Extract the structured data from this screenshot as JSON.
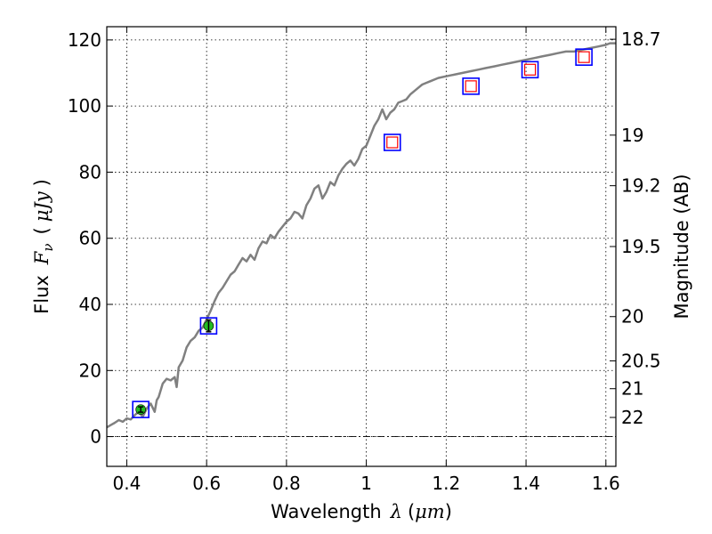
{
  "chart_data": {
    "type": "scatter",
    "xlabel": {
      "text": "Wavelength",
      "symbol": "λ",
      "unit_open": "(",
      "unit": "μm",
      "unit_close": ")"
    },
    "ylabel": {
      "text": "Flux",
      "symbol": "F",
      "subscript": "ν",
      "unit_open": "(",
      "unit": "μJy",
      "unit_close": ")"
    },
    "y2label": "Magnitude (AB)",
    "xlim": [
      0.35,
      1.625
    ],
    "ylim": [
      -9,
      124
    ],
    "grid": true,
    "x_ticks": [
      0.4,
      0.6,
      0.8,
      1.0,
      1.2,
      1.4,
      1.6
    ],
    "x_tick_labels": [
      "0.4",
      "0.6",
      "0.8",
      "1",
      "1.2",
      "1.4",
      "1.6"
    ],
    "y_ticks": [
      0,
      20,
      40,
      60,
      80,
      100,
      120
    ],
    "y_tick_labels": [
      "0",
      "20",
      "40",
      "60",
      "80",
      "100",
      "120"
    ],
    "mag_ticks": [
      {
        "label": "18.7",
        "flux": 120.2
      },
      {
        "label": "19",
        "flux": 91.2
      },
      {
        "label": "19.2",
        "flux": 75.9
      },
      {
        "label": "19.5",
        "flux": 57.5
      },
      {
        "label": "20",
        "flux": 36.3
      },
      {
        "label": "20.5",
        "flux": 22.9
      },
      {
        "label": "21",
        "flux": 14.5
      },
      {
        "label": "22",
        "flux": 5.8
      }
    ],
    "spectrum": {
      "color": "#808080",
      "x": [
        0.35,
        0.36,
        0.37,
        0.38,
        0.39,
        0.4,
        0.41,
        0.42,
        0.43,
        0.44,
        0.45,
        0.46,
        0.47,
        0.475,
        0.48,
        0.49,
        0.5,
        0.51,
        0.52,
        0.525,
        0.53,
        0.54,
        0.55,
        0.56,
        0.57,
        0.58,
        0.59,
        0.6,
        0.61,
        0.62,
        0.63,
        0.64,
        0.65,
        0.66,
        0.67,
        0.68,
        0.69,
        0.7,
        0.71,
        0.72,
        0.73,
        0.74,
        0.75,
        0.76,
        0.77,
        0.78,
        0.79,
        0.8,
        0.81,
        0.82,
        0.83,
        0.84,
        0.85,
        0.86,
        0.87,
        0.88,
        0.89,
        0.9,
        0.91,
        0.92,
        0.93,
        0.94,
        0.95,
        0.96,
        0.97,
        0.98,
        0.99,
        1.0,
        1.01,
        1.02,
        1.03,
        1.04,
        1.05,
        1.06,
        1.07,
        1.08,
        1.09,
        1.1,
        1.11,
        1.12,
        1.13,
        1.14,
        1.15,
        1.16,
        1.18,
        1.2,
        1.22,
        1.24,
        1.26,
        1.28,
        1.3,
        1.32,
        1.34,
        1.36,
        1.38,
        1.4,
        1.42,
        1.44,
        1.46,
        1.48,
        1.5,
        1.52,
        1.54,
        1.56,
        1.58,
        1.6,
        1.61,
        1.625
      ],
      "y": [
        2.8,
        3.5,
        4.2,
        5.0,
        4.5,
        5.5,
        5.2,
        6.5,
        7.5,
        6.0,
        8.5,
        10.0,
        7.5,
        11.0,
        12.0,
        16.0,
        17.5,
        17.0,
        18.0,
        15.0,
        21.0,
        23.0,
        27.0,
        29.0,
        30.0,
        32.0,
        33.0,
        35.5,
        38.0,
        41.0,
        43.5,
        45.0,
        47.0,
        49.0,
        50.0,
        52.0,
        54.0,
        53.0,
        55.0,
        53.5,
        57.0,
        59.0,
        58.5,
        61.0,
        60.0,
        62.0,
        63.5,
        65.0,
        66.0,
        68.0,
        67.5,
        66.0,
        70.0,
        72.0,
        75.0,
        76.0,
        72.0,
        74.0,
        77.0,
        76.0,
        79.0,
        81.0,
        82.5,
        83.5,
        82.0,
        84.0,
        87.0,
        88.0,
        91.0,
        94.0,
        96.0,
        99.0,
        96.0,
        98.0,
        99.0,
        101.0,
        101.5,
        102.0,
        103.5,
        104.5,
        105.5,
        106.5,
        107.0,
        107.5,
        108.5,
        109.0,
        109.5,
        110.0,
        110.5,
        111.0,
        111.5,
        112.0,
        112.5,
        113.0,
        113.5,
        114.0,
        114.5,
        115.0,
        115.5,
        116.0,
        116.5,
        116.5,
        117.0,
        117.5,
        118.0,
        118.5,
        119.0,
        119.0
      ]
    },
    "photometry": [
      {
        "x": 0.435,
        "y": 8.2,
        "yerr": 0.8,
        "marker": "circle",
        "color": "#22bb22"
      },
      {
        "x": 0.605,
        "y": 33.5,
        "yerr": 1.8,
        "marker": "circle",
        "color": "#22bb22"
      }
    ],
    "model_squares": [
      {
        "x": 1.065,
        "y": 89.0
      },
      {
        "x": 1.262,
        "y": 106.0
      },
      {
        "x": 1.41,
        "y": 111.0
      },
      {
        "x": 1.545,
        "y": 114.8
      }
    ],
    "blue_squares": [
      {
        "x": 0.435,
        "y": 8.2
      },
      {
        "x": 0.605,
        "y": 33.5
      },
      {
        "x": 1.065,
        "y": 89.0
      },
      {
        "x": 1.262,
        "y": 106.0
      },
      {
        "x": 1.41,
        "y": 111.0
      },
      {
        "x": 1.545,
        "y": 114.8
      }
    ],
    "colors": {
      "blue_square": "#0000ff",
      "red_square": "#ff0000",
      "spectrum": "#808080",
      "zero_line": "#000000"
    }
  }
}
